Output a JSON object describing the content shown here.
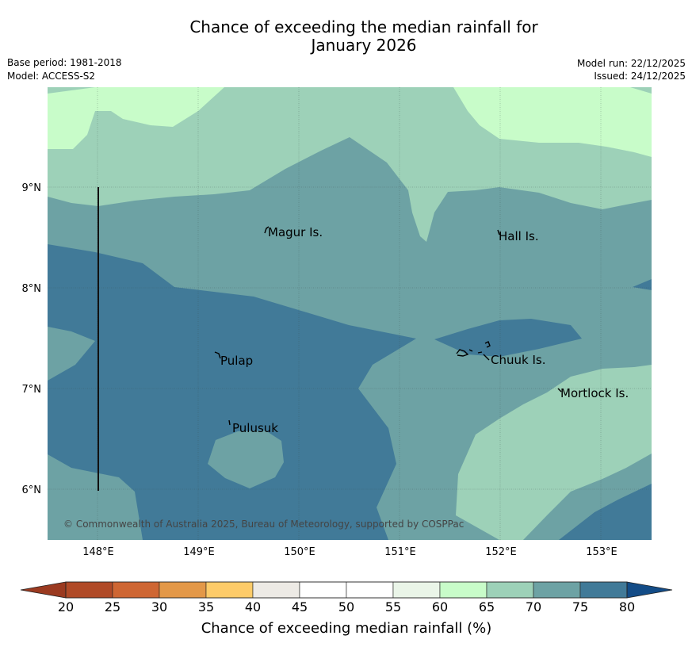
{
  "title_line1": "Chance of exceeding the median rainfall for",
  "title_line2": "January 2026",
  "base_period": "Base period: 1981-2018",
  "model": "Model: ACCESS-S2",
  "model_run": "Model run: 22/12/2025",
  "issued": "Issued: 24/12/2025",
  "copyright": "© Commonwealth of Australia 2025, Bureau of Meteorology, supported by COSPPac",
  "map": {
    "lon_labels": [
      "148°E",
      "149°E",
      "150°E",
      "151°E",
      "152°E",
      "153°E"
    ],
    "lat_labels": [
      "9°N",
      "8°N",
      "7°N",
      "6°N"
    ],
    "places": [
      "Magur Is.",
      "Hall Is.",
      "Pulap",
      "Chuuk Is.",
      "Mortlock Is.",
      "Pulusuk"
    ]
  },
  "colorbar": {
    "title": "Chance of exceeding median rainfall (%)",
    "ticks": [
      "20",
      "25",
      "30",
      "35",
      "40",
      "45",
      "50",
      "55",
      "60",
      "65",
      "70",
      "75",
      "80"
    ],
    "colors": [
      "#b04a27",
      "#ce6633",
      "#e39848",
      "#fdcb69",
      "#edeae5",
      "#ffffff",
      "#ffffff",
      "#eaf5e8",
      "#c8fcc9",
      "#9dd1b8",
      "#6da2a4",
      "#417a98"
    ],
    "extend_low": "#9b3a20",
    "extend_high": "#134c87"
  },
  "zone_colors": {
    "c65": "#c8fcc9",
    "c70": "#9dd1b8",
    "c75": "#6da2a4",
    "c80": "#417a98",
    "c85": "#3b6f90"
  }
}
